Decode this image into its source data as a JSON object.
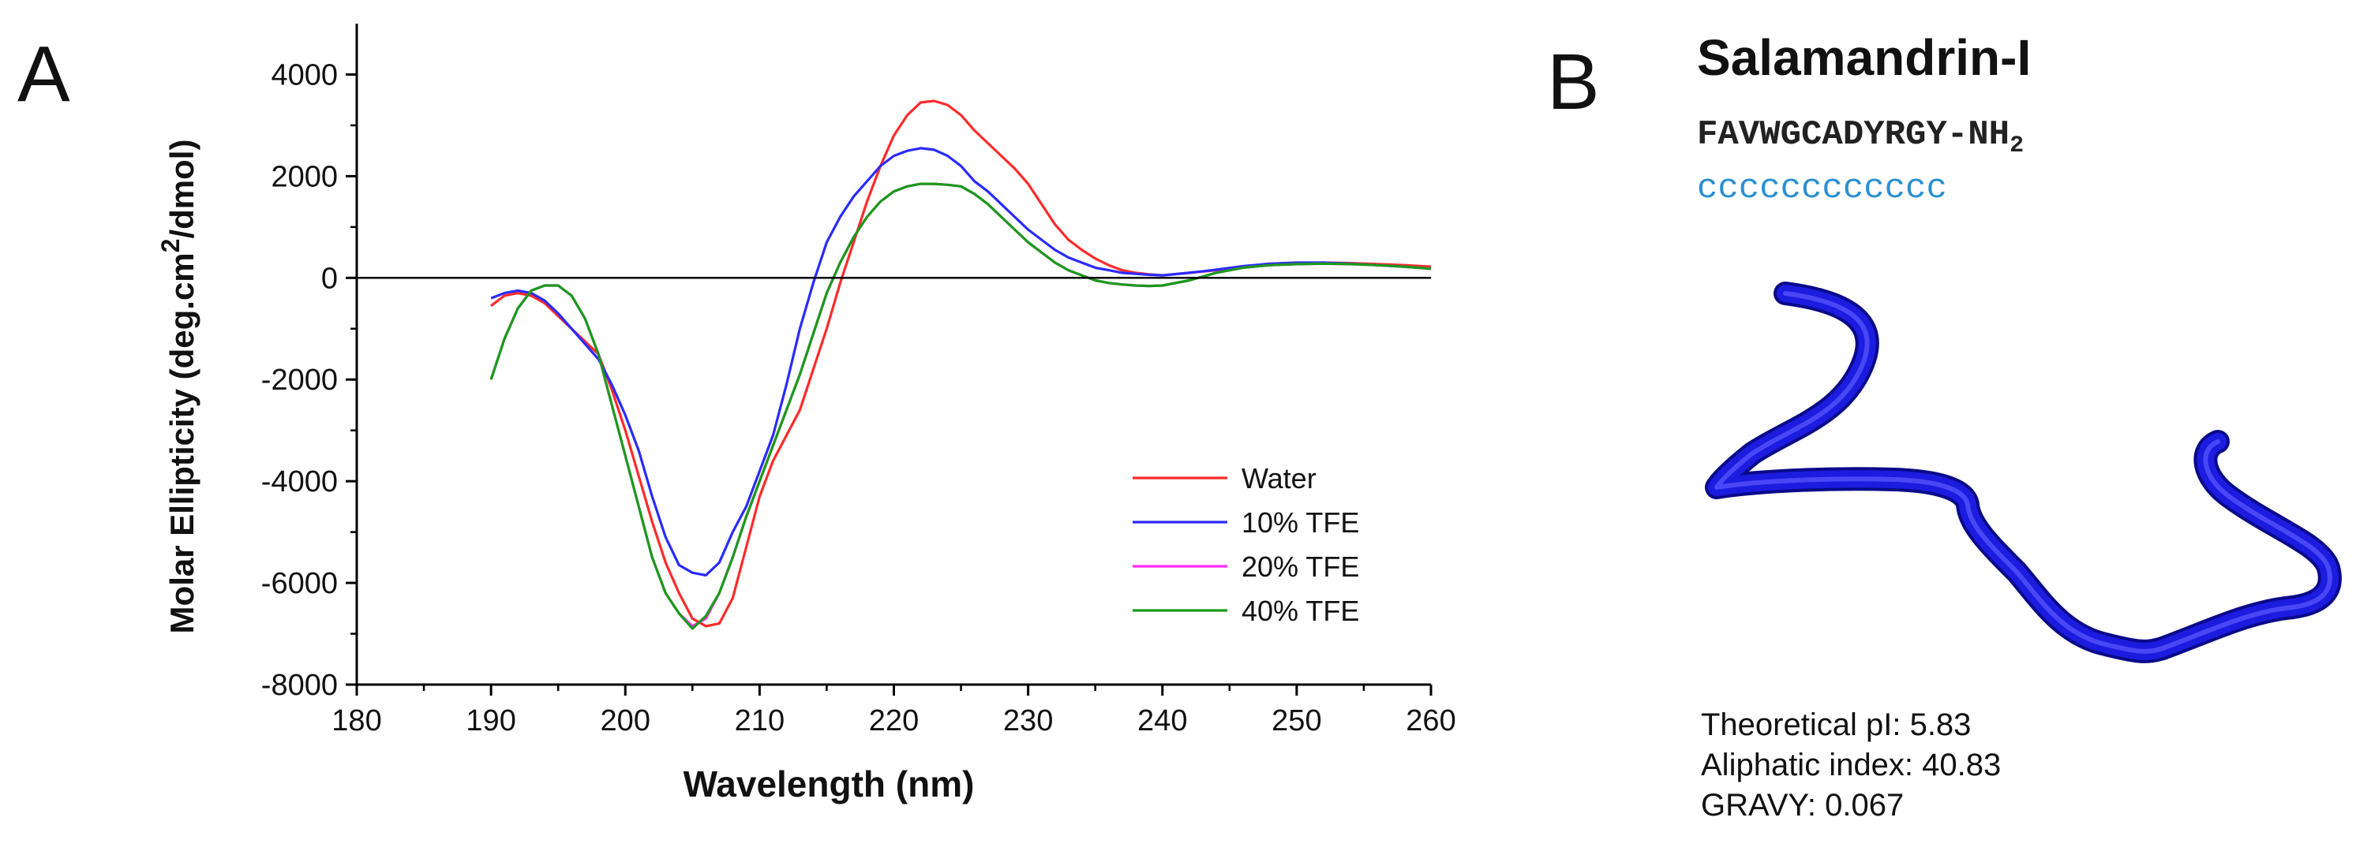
{
  "panel_a": {
    "letter": "A"
  },
  "panel_b": {
    "letter": "B",
    "peptide_name": "Salamandrin-I",
    "sequence": "FAVWGCADYRGY-NH",
    "sequence_subscript": "2",
    "secondary_structure": "cccccccccccc",
    "properties": [
      "Theoretical pI: 5.83",
      "Aliphatic index: 40.83",
      "GRAVY: 0.067"
    ],
    "structure_color": "#1c1ce0"
  },
  "chart_data": {
    "type": "line",
    "xlabel": "Wavelength (nm)",
    "ylabel_parts": [
      "Molar Ellipticity (deg.cm",
      "2",
      "/dmol)"
    ],
    "xlim": [
      180,
      260
    ],
    "ylim": [
      -8000,
      5000
    ],
    "xticks": [
      180,
      190,
      200,
      210,
      220,
      230,
      240,
      250,
      260
    ],
    "yticks": [
      -8000,
      -6000,
      -4000,
      -2000,
      0,
      2000,
      4000
    ],
    "zero_line": true,
    "legend_position": "lower-right",
    "series": [
      {
        "name": "Water",
        "color": "#ff2a2a",
        "x": [
          190,
          191,
          192,
          193,
          194,
          195,
          196,
          197,
          198,
          199,
          200,
          201,
          202,
          203,
          204,
          205,
          206,
          207,
          208,
          209,
          210,
          211,
          212,
          213,
          214,
          215,
          216,
          217,
          218,
          219,
          220,
          221,
          222,
          223,
          224,
          225,
          226,
          227,
          228,
          229,
          230,
          231,
          232,
          233,
          234,
          235,
          236,
          237,
          238,
          239,
          240,
          242,
          244,
          246,
          248,
          250,
          252,
          254,
          256,
          258,
          260
        ],
        "y": [
          -550,
          -350,
          -300,
          -350,
          -500,
          -750,
          -1000,
          -1250,
          -1500,
          -2200,
          -3000,
          -3900,
          -4800,
          -5600,
          -6200,
          -6700,
          -6850,
          -6800,
          -6300,
          -5300,
          -4300,
          -3600,
          -3100,
          -2600,
          -1800,
          -1000,
          -100,
          700,
          1500,
          2200,
          2800,
          3200,
          3450,
          3480,
          3400,
          3200,
          2900,
          2650,
          2400,
          2150,
          1850,
          1450,
          1050,
          750,
          550,
          380,
          250,
          150,
          100,
          70,
          50,
          100,
          150,
          200,
          250,
          280,
          300,
          290,
          270,
          250,
          220
        ]
      },
      {
        "name": "10% TFE",
        "color": "#2a2aff",
        "x": [
          190,
          191,
          192,
          193,
          194,
          195,
          196,
          197,
          198,
          199,
          200,
          201,
          202,
          203,
          204,
          205,
          206,
          207,
          208,
          209,
          210,
          211,
          212,
          213,
          214,
          215,
          216,
          217,
          218,
          219,
          220,
          221,
          222,
          223,
          224,
          225,
          226,
          227,
          228,
          229,
          230,
          231,
          232,
          233,
          234,
          235,
          236,
          237,
          238,
          239,
          240,
          242,
          244,
          246,
          248,
          250,
          252,
          254,
          256,
          258,
          260
        ],
        "y": [
          -400,
          -300,
          -250,
          -300,
          -450,
          -700,
          -1000,
          -1300,
          -1600,
          -2100,
          -2700,
          -3400,
          -4300,
          -5100,
          -5650,
          -5800,
          -5850,
          -5600,
          -5000,
          -4500,
          -3800,
          -3100,
          -2100,
          -1000,
          -100,
          700,
          1200,
          1600,
          1900,
          2200,
          2400,
          2500,
          2550,
          2520,
          2400,
          2200,
          1900,
          1700,
          1450,
          1200,
          950,
          750,
          550,
          400,
          300,
          200,
          150,
          100,
          80,
          60,
          50,
          100,
          160,
          230,
          280,
          300,
          300,
          280,
          250,
          220,
          180
        ]
      },
      {
        "name": "20% TFE",
        "color": "#ff2aff",
        "x": [
          190,
          191,
          192,
          193,
          194,
          195,
          196,
          197,
          198,
          199,
          200,
          201,
          202,
          203,
          204,
          205,
          206,
          207,
          208,
          209,
          210,
          211,
          212,
          213,
          214,
          215,
          216,
          217,
          218,
          219,
          220,
          221,
          222,
          223,
          224,
          225,
          226,
          227,
          228,
          229,
          230,
          231,
          232,
          233,
          234,
          235,
          236,
          237,
          238,
          239,
          240,
          242,
          244,
          246,
          248,
          250,
          252,
          254,
          256,
          258,
          260
        ],
        "y": [
          -2000,
          -1200,
          -600,
          -250,
          -150,
          -150,
          -350,
          -800,
          -1500,
          -2500,
          -3500,
          -4500,
          -5500,
          -6200,
          -6600,
          -6850,
          -6700,
          -6200,
          -5500,
          -4700,
          -4000,
          -3300,
          -2600,
          -1900,
          -1100,
          -300,
          300,
          800,
          1200,
          1500,
          1700,
          1800,
          1850,
          1850,
          1830,
          1800,
          1650,
          1450,
          1200,
          950,
          700,
          500,
          300,
          150,
          50,
          -50,
          -100,
          -130,
          -150,
          -160,
          -150,
          -50,
          100,
          200,
          250,
          270,
          280,
          270,
          250,
          220,
          180
        ]
      },
      {
        "name": "40% TFE",
        "color": "#1a9a1a",
        "x": [
          190,
          191,
          192,
          193,
          194,
          195,
          196,
          197,
          198,
          199,
          200,
          201,
          202,
          203,
          204,
          205,
          206,
          207,
          208,
          209,
          210,
          211,
          212,
          213,
          214,
          215,
          216,
          217,
          218,
          219,
          220,
          221,
          222,
          223,
          224,
          225,
          226,
          227,
          228,
          229,
          230,
          231,
          232,
          233,
          234,
          235,
          236,
          237,
          238,
          239,
          240,
          242,
          244,
          246,
          248,
          250,
          252,
          254,
          256,
          258,
          260
        ],
        "y": [
          -2000,
          -1200,
          -600,
          -250,
          -150,
          -150,
          -350,
          -800,
          -1500,
          -2500,
          -3500,
          -4500,
          -5500,
          -6200,
          -6600,
          -6900,
          -6650,
          -6200,
          -5500,
          -4700,
          -4000,
          -3300,
          -2600,
          -1900,
          -1100,
          -300,
          300,
          800,
          1200,
          1500,
          1700,
          1800,
          1850,
          1850,
          1830,
          1800,
          1650,
          1450,
          1200,
          950,
          700,
          500,
          300,
          150,
          50,
          -50,
          -100,
          -130,
          -150,
          -160,
          -150,
          -50,
          100,
          200,
          250,
          270,
          280,
          270,
          250,
          220,
          180
        ]
      }
    ]
  }
}
